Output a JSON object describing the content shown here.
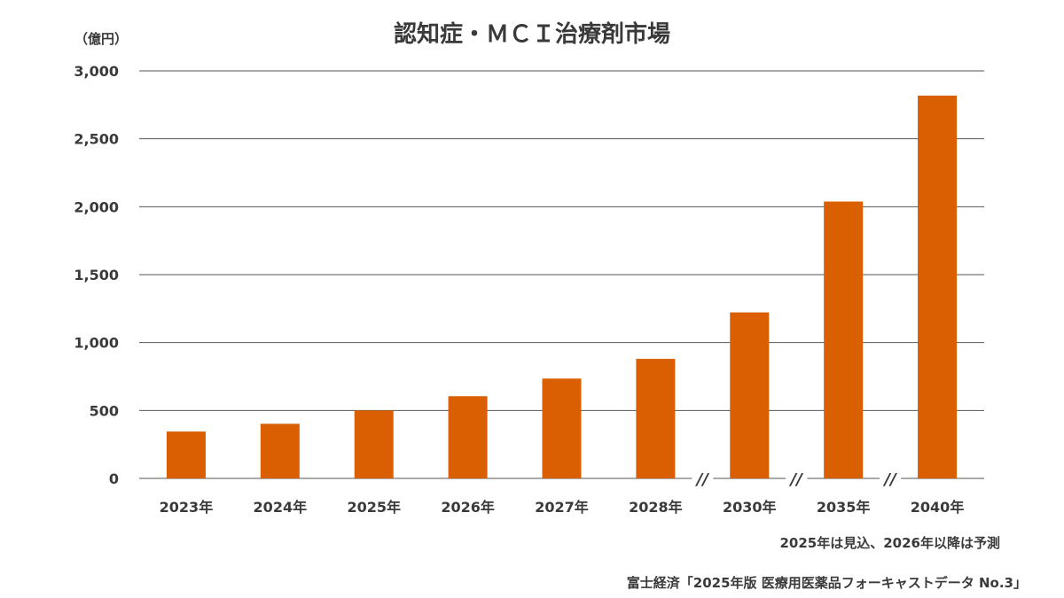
{
  "chart_data": {
    "type": "bar",
    "title": "認知症・ＭＣＩ治療剤市場",
    "unit_label": "（億円）",
    "categories": [
      "2023年",
      "2024年",
      "2025年",
      "2026年",
      "2027年",
      "2028年",
      "2030年",
      "2035年",
      "2040年"
    ],
    "values": [
      345,
      402,
      500,
      605,
      735,
      880,
      1222,
      2038,
      2818
    ],
    "yticks": [
      "0",
      "500",
      "1,000",
      "1,500",
      "2,000",
      "2,500",
      "3,000"
    ],
    "ylim": [
      0,
      3000
    ],
    "grid": true,
    "axis_breaks_after_index": [
      5,
      6,
      7
    ],
    "break_mark": "//",
    "bar_color": "#d95f02",
    "grid_color": "#555555"
  },
  "note": "2025年は見込、2026年以降は予測",
  "source": "富士経済「2025年版 医療用医薬品フォーキャストデータ No.3」"
}
